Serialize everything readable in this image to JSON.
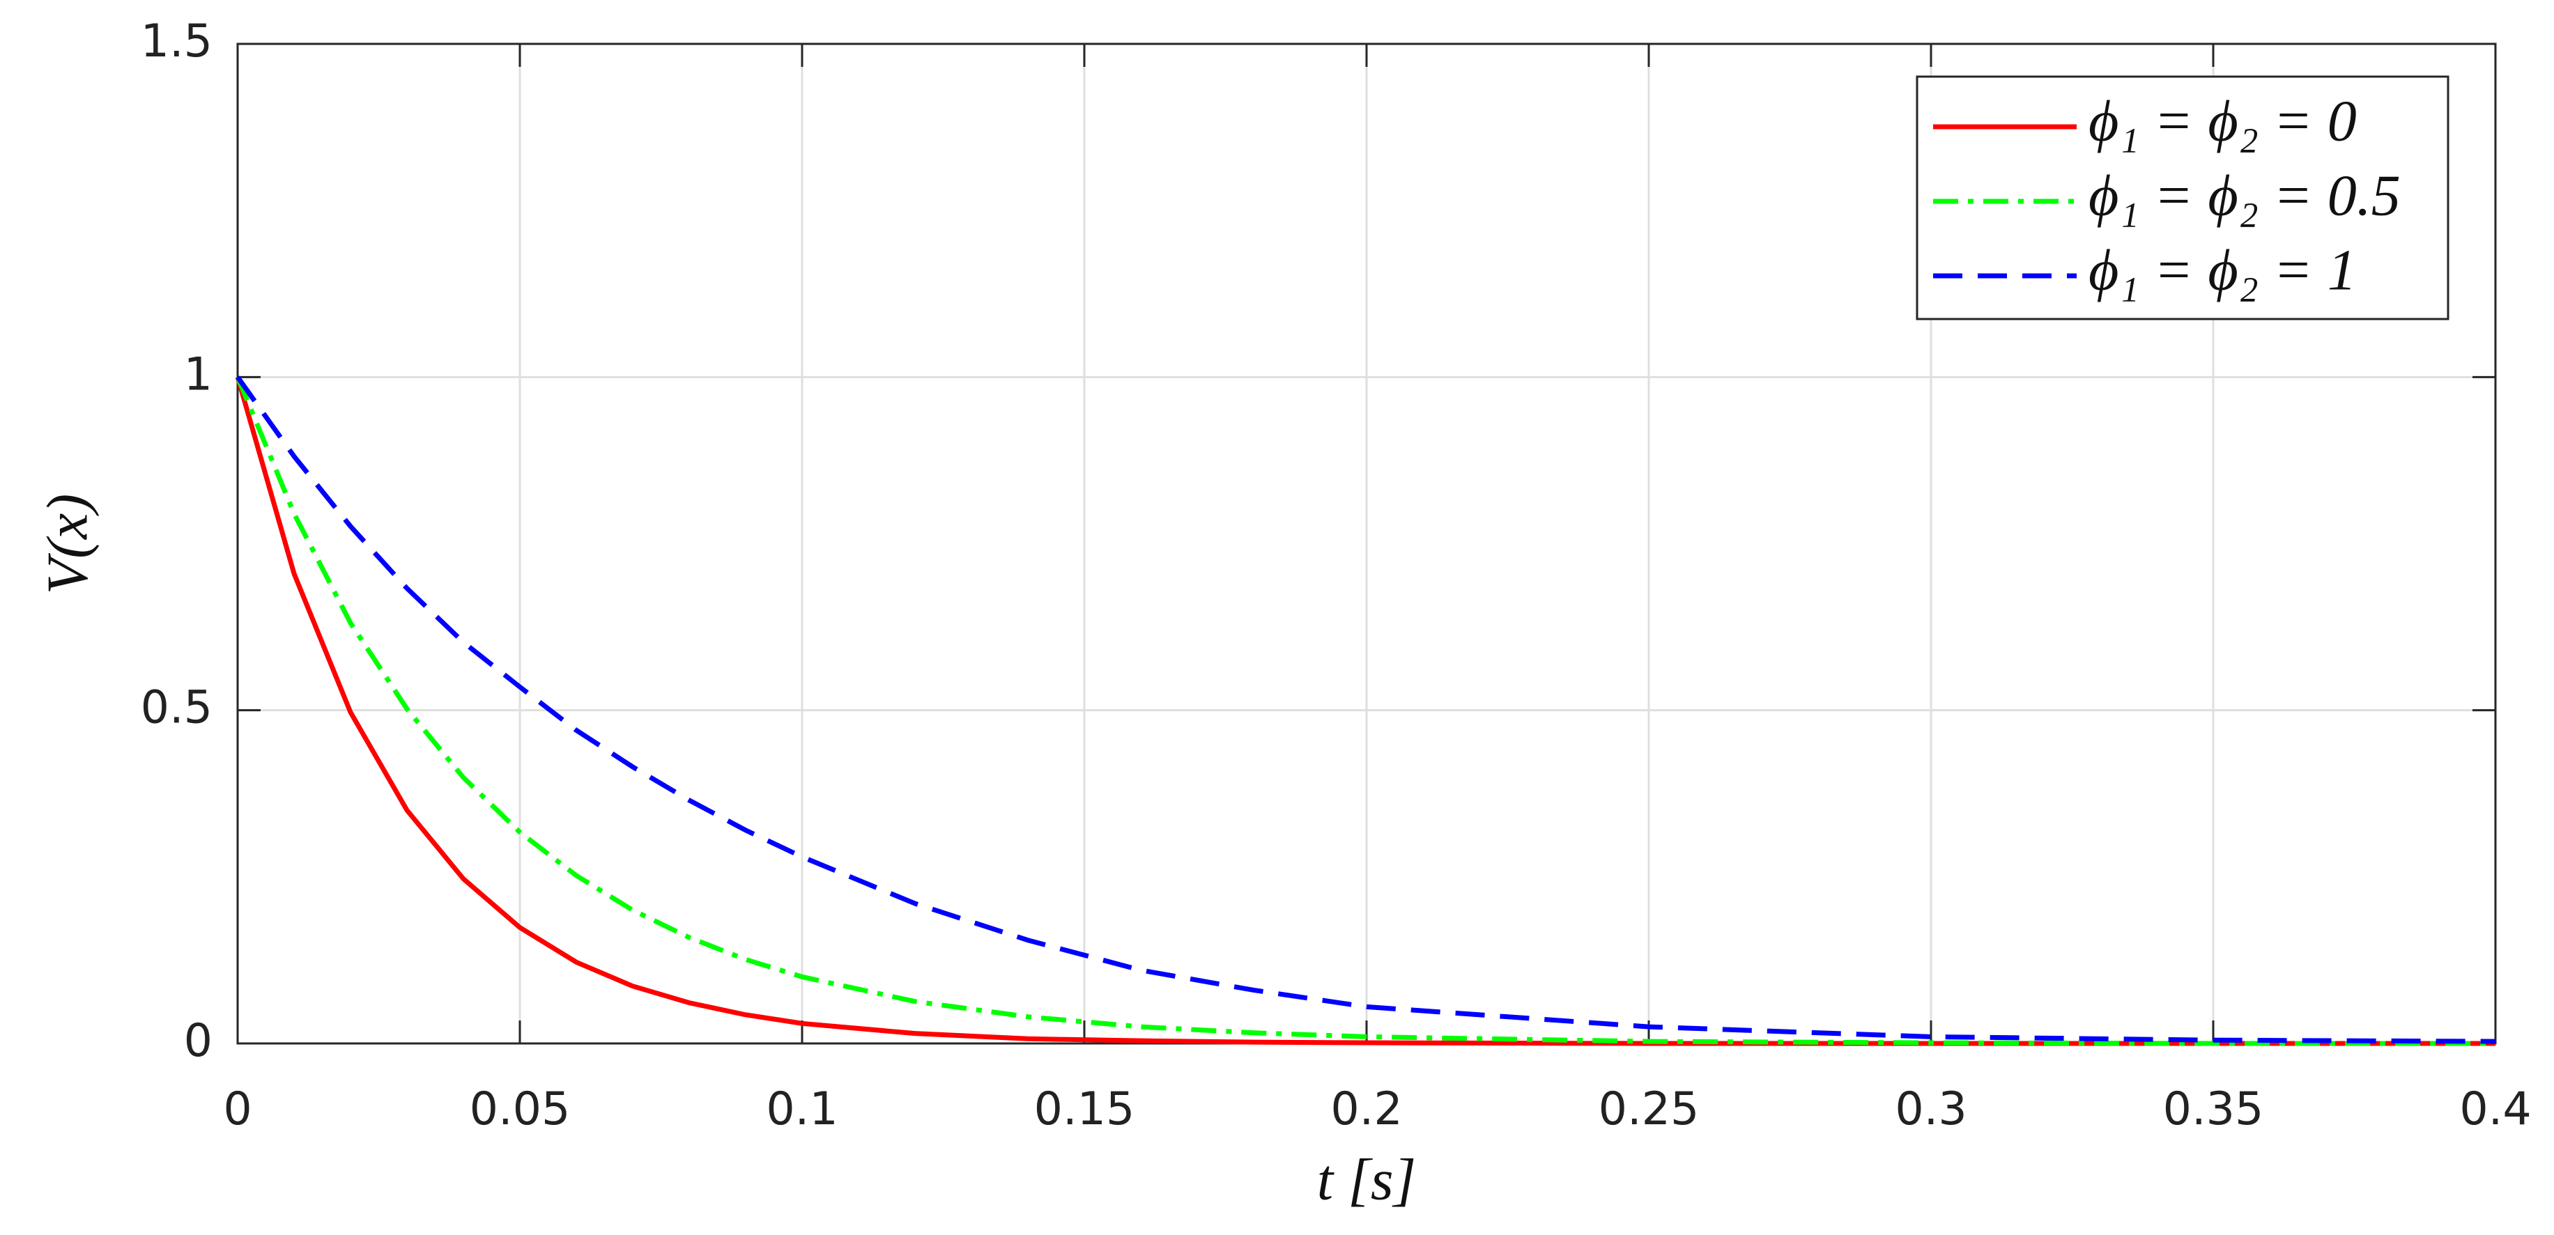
{
  "chart_data": {
    "type": "line",
    "xlabel": "t [s]",
    "ylabel": "V(x)",
    "x": [
      0,
      0.01,
      0.02,
      0.03,
      0.04,
      0.05,
      0.06,
      0.07,
      0.08,
      0.09,
      0.1,
      0.12,
      0.14,
      0.16,
      0.18,
      0.2,
      0.25,
      0.3,
      0.35,
      0.4
    ],
    "series": [
      {
        "name": "ϕ₁ = ϕ₂ = 0",
        "color": "#ff0000",
        "dash": "solid",
        "values": [
          1,
          0.705,
          0.497,
          0.35,
          0.247,
          0.174,
          0.122,
          0.086,
          0.061,
          0.043,
          0.03,
          0.015,
          0.007,
          0.004,
          0.002,
          0.001,
          0,
          0,
          0,
          0
        ]
      },
      {
        "name": "ϕ₁ = ϕ₂ = 0.5",
        "color": "#00ff00",
        "dash": "dashdot",
        "values": [
          1,
          0.795,
          0.631,
          0.502,
          0.399,
          0.317,
          0.252,
          0.2,
          0.159,
          0.126,
          0.1,
          0.063,
          0.04,
          0.025,
          0.016,
          0.01,
          0.003,
          0.001,
          0,
          0
        ]
      },
      {
        "name": "ϕ₁ = ϕ₂ = 1",
        "color": "#0000ff",
        "dash": "dashed",
        "values": [
          1,
          0.881,
          0.776,
          0.683,
          0.602,
          0.535,
          0.47,
          0.415,
          0.365,
          0.32,
          0.28,
          0.21,
          0.155,
          0.11,
          0.08,
          0.055,
          0.025,
          0.01,
          0.005,
          0.003
        ]
      }
    ],
    "xlim": [
      0,
      0.4
    ],
    "xticks": [
      0,
      0.05,
      0.1,
      0.15,
      0.2,
      0.25,
      0.3,
      0.35,
      0.4
    ],
    "ylim": [
      0,
      1.5
    ],
    "yticks": [
      0,
      0.5,
      1,
      1.5
    ],
    "grid": true,
    "legend": "upper right"
  }
}
